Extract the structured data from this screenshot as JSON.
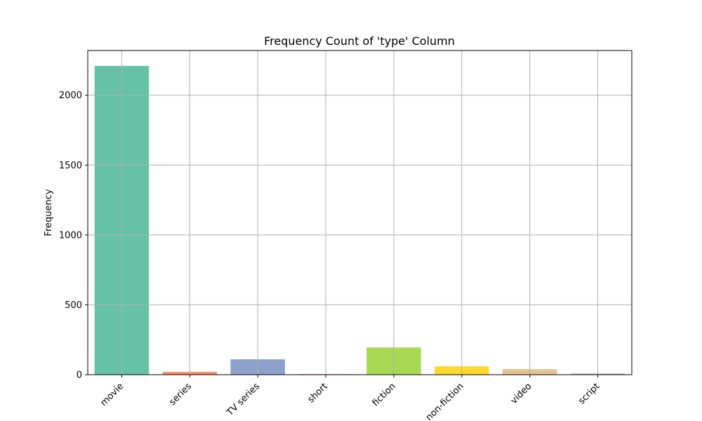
{
  "chart_data": {
    "type": "bar",
    "title": "Frequency Count of 'type' Column",
    "xlabel": "",
    "ylabel": "Frequency",
    "categories": [
      "movie",
      "series",
      "TV series",
      "short",
      "fiction",
      "non-fiction",
      "video",
      "script"
    ],
    "values": [
      2210,
      20,
      110,
      4,
      195,
      60,
      40,
      8
    ],
    "colors": [
      "#66c2a5",
      "#fc8d62",
      "#8da0cb",
      "#e78ac3",
      "#a6d854",
      "#ffd92f",
      "#e5c494",
      "#b3b3b3"
    ],
    "ylim": [
      0,
      2320
    ],
    "yticks": [
      0,
      500,
      1000,
      1500,
      2000
    ],
    "grid": true
  }
}
